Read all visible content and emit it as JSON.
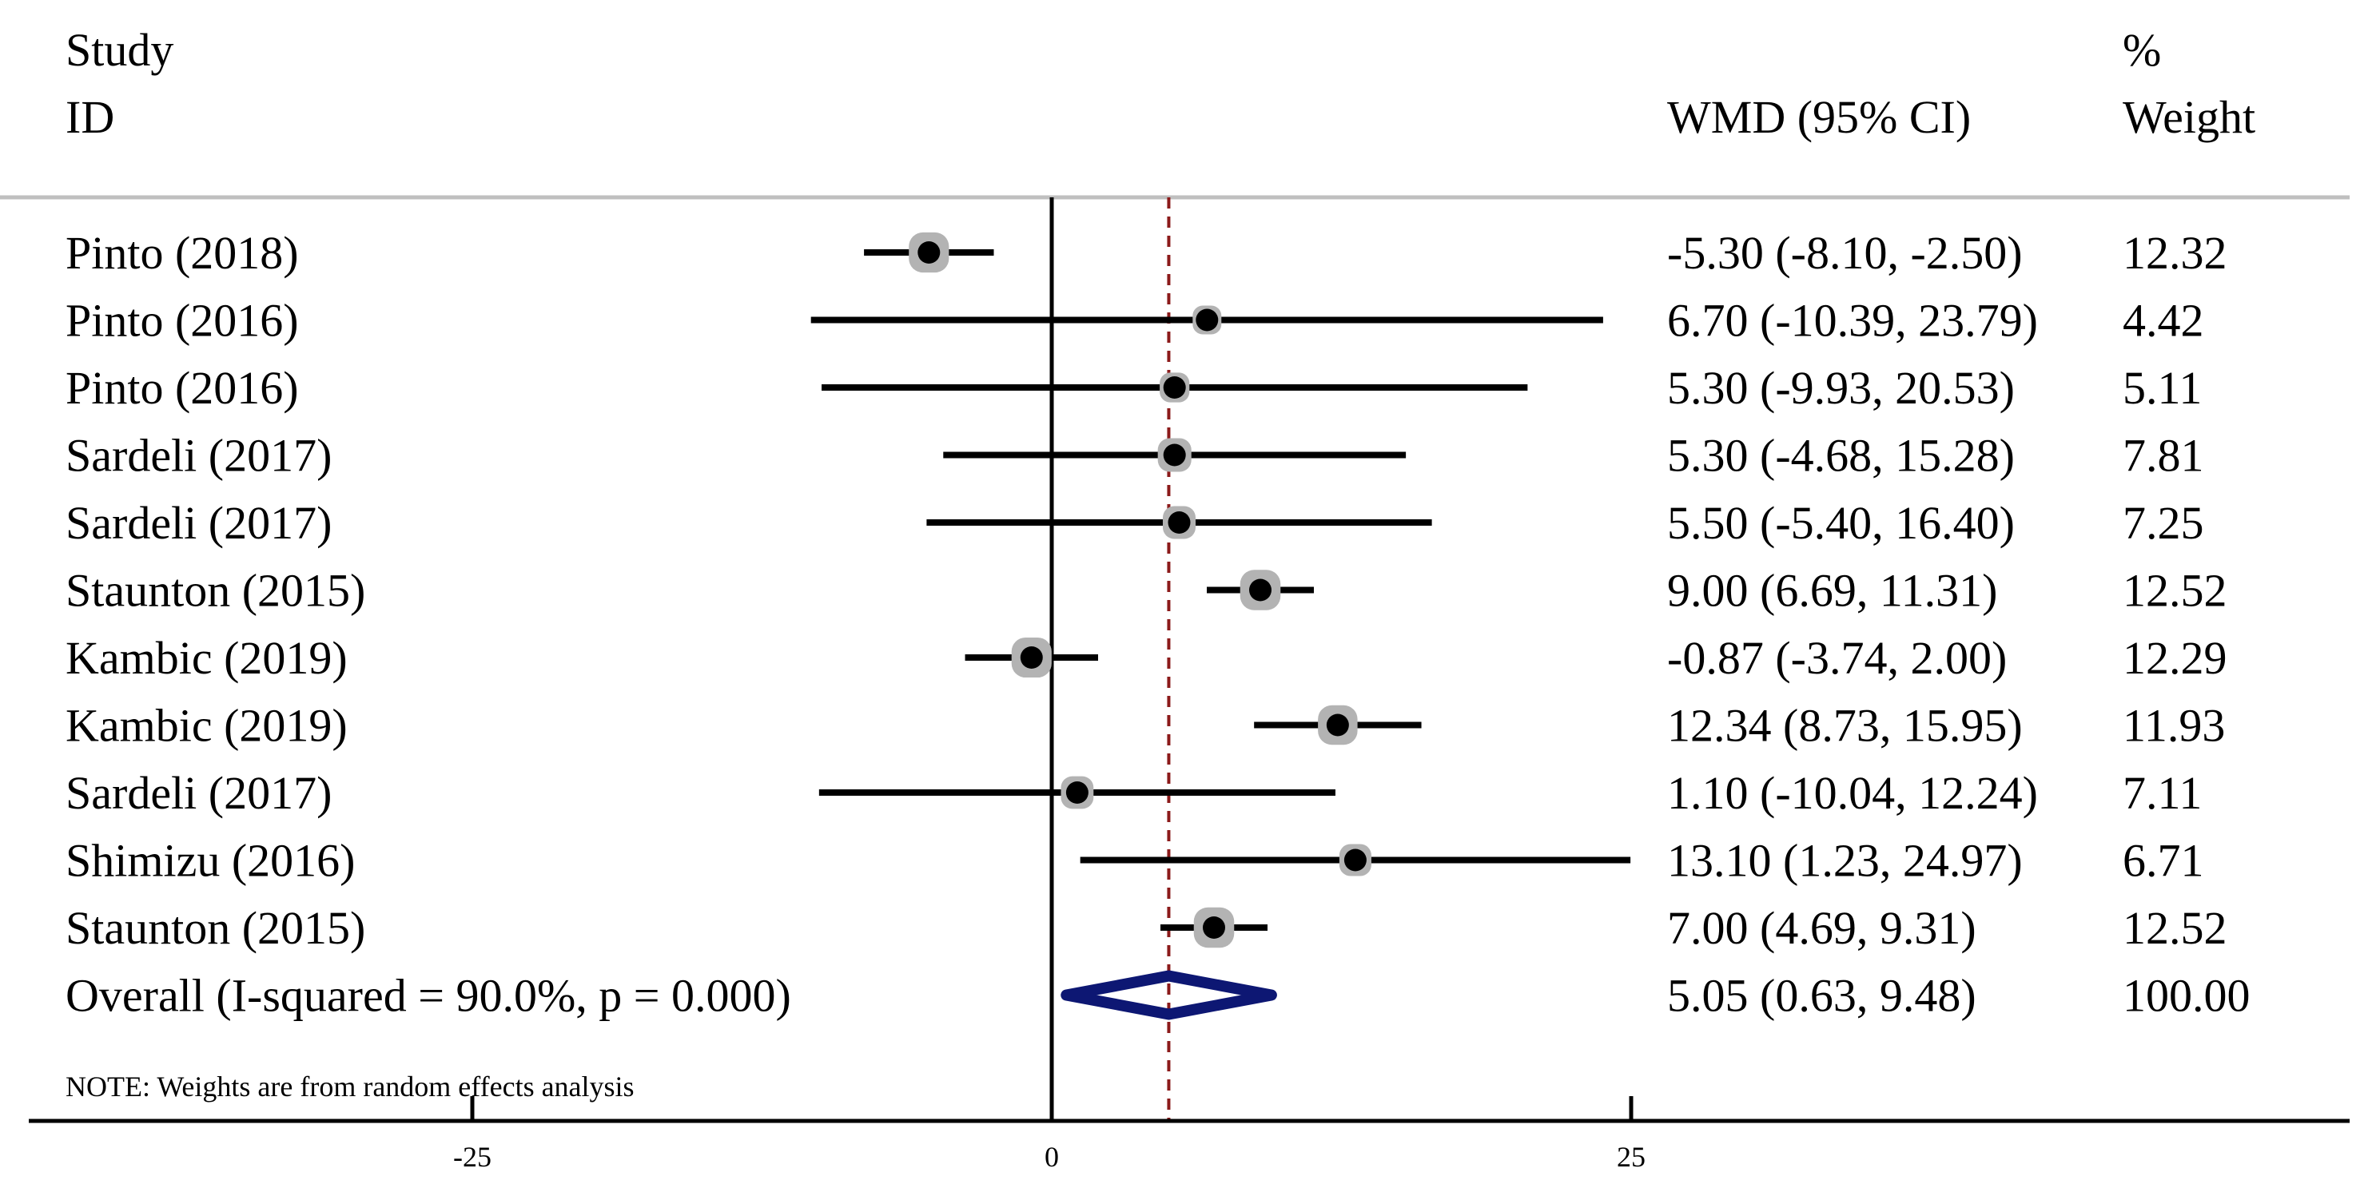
{
  "chart_data": {
    "type": "forest",
    "header": {
      "study_line1": "Study",
      "study_line2": "ID",
      "effect_label": "WMD (95% CI)",
      "weight_line1": "%",
      "weight_line2": "Weight"
    },
    "studies": [
      {
        "label": "Pinto (2018)",
        "estimate": -5.3,
        "lower": -8.1,
        "upper": -2.5,
        "ci_text": "-5.30 (-8.10, -2.50)",
        "weight": "12.32"
      },
      {
        "label": "Pinto (2016)",
        "estimate": 6.7,
        "lower": -10.39,
        "upper": 23.79,
        "ci_text": "6.70 (-10.39, 23.79)",
        "weight": "4.42"
      },
      {
        "label": "Pinto (2016)",
        "estimate": 5.3,
        "lower": -9.93,
        "upper": 20.53,
        "ci_text": "5.30 (-9.93, 20.53)",
        "weight": "5.11"
      },
      {
        "label": "Sardeli (2017)",
        "estimate": 5.3,
        "lower": -4.68,
        "upper": 15.28,
        "ci_text": "5.30 (-4.68, 15.28)",
        "weight": "7.81"
      },
      {
        "label": "Sardeli (2017)",
        "estimate": 5.5,
        "lower": -5.4,
        "upper": 16.4,
        "ci_text": "5.50 (-5.40, 16.40)",
        "weight": "7.25"
      },
      {
        "label": "Staunton (2015)",
        "estimate": 9.0,
        "lower": 6.69,
        "upper": 11.31,
        "ci_text": "9.00 (6.69, 11.31)",
        "weight": "12.52"
      },
      {
        "label": "Kambic  (2019)",
        "estimate": -0.87,
        "lower": -3.74,
        "upper": 2.0,
        "ci_text": "-0.87 (-3.74, 2.00)",
        "weight": "12.29"
      },
      {
        "label": "Kambic (2019)",
        "estimate": 12.34,
        "lower": 8.73,
        "upper": 15.95,
        "ci_text": "12.34 (8.73, 15.95)",
        "weight": "11.93"
      },
      {
        "label": "Sardeli (2017)",
        "estimate": 1.1,
        "lower": -10.04,
        "upper": 12.24,
        "ci_text": "1.10 (-10.04, 12.24)",
        "weight": "7.11"
      },
      {
        "label": "Shimizu  (2016)",
        "estimate": 13.1,
        "lower": 1.23,
        "upper": 24.97,
        "ci_text": "13.10 (1.23, 24.97)",
        "weight": "6.71"
      },
      {
        "label": "Staunton (2015)",
        "estimate": 7.0,
        "lower": 4.69,
        "upper": 9.31,
        "ci_text": "7.00 (4.69, 9.31)",
        "weight": "12.52"
      }
    ],
    "overall": {
      "label": "Overall  (I-squared = 90.0%, p = 0.000)",
      "estimate": 5.05,
      "lower": 0.63,
      "upper": 9.48,
      "ci_text": "5.05 (0.63, 9.48)",
      "weight": "100.00"
    },
    "note": "NOTE: Weights are from random effects analysis",
    "x_ticks": [
      -25,
      0,
      25
    ],
    "x_tick_labels": [
      "-25",
      "0",
      "25"
    ],
    "xlim": [
      -44.2,
      55.9
    ],
    "null_value": 0,
    "colors": {
      "ci_line": "#000000",
      "point": "#000000",
      "weight_box": "#b3b3b3",
      "overall_diamond": "#0d1773",
      "reference_line": "#8b1a1a",
      "header_rule": "#bfbfbf"
    }
  }
}
